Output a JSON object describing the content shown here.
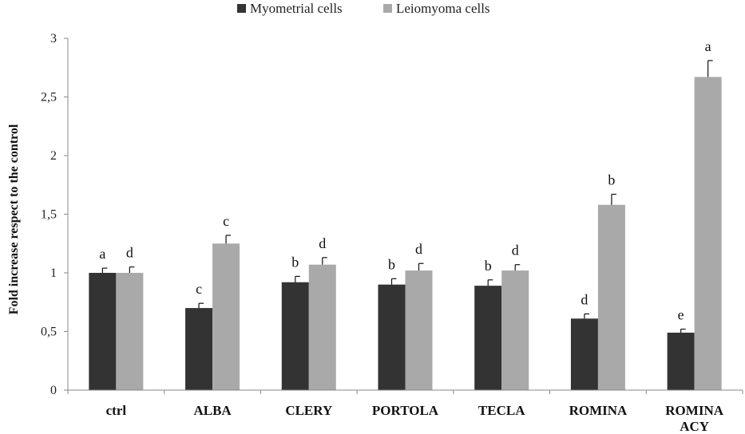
{
  "chart_data": {
    "type": "bar",
    "ylabel": "Fold increase respect to the control",
    "ylim": [
      0,
      3
    ],
    "yticks": [
      "0",
      "0,5",
      "1",
      "1,5",
      "2",
      "2,5",
      "3"
    ],
    "ytick_values": [
      0,
      0.5,
      1,
      1.5,
      2,
      2.5,
      3
    ],
    "grid": false,
    "legend_position": "top-center",
    "categories": [
      [
        "ctrl"
      ],
      [
        "ALBA"
      ],
      [
        "CLERY"
      ],
      [
        "PORTOLA"
      ],
      [
        "TECLA"
      ],
      [
        "ROMINA"
      ],
      [
        "ROMINA",
        "ACY"
      ]
    ],
    "series": [
      {
        "name": "Myometrial cells",
        "color": "#333333",
        "values": [
          1.0,
          0.7,
          0.92,
          0.9,
          0.89,
          0.61,
          0.49
        ],
        "errors": [
          0.04,
          0.04,
          0.05,
          0.05,
          0.05,
          0.04,
          0.03
        ],
        "labels": [
          "a",
          "c",
          "b",
          "b",
          "b",
          "d",
          "e"
        ]
      },
      {
        "name": "Leiomyoma cells",
        "color": "#a9a9a9",
        "values": [
          1.0,
          1.25,
          1.07,
          1.02,
          1.02,
          1.58,
          2.67
        ],
        "errors": [
          0.05,
          0.07,
          0.06,
          0.06,
          0.05,
          0.09,
          0.14
        ],
        "labels": [
          "d",
          "c",
          "d",
          "d",
          "d",
          "b",
          "a"
        ]
      }
    ]
  }
}
